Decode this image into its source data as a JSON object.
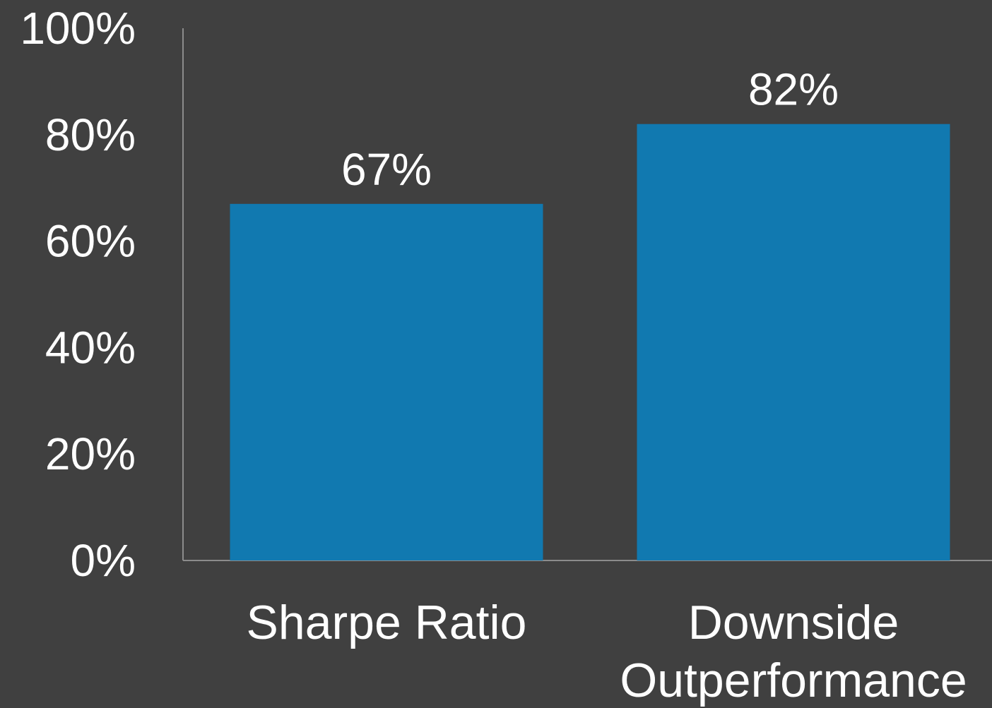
{
  "chart_data": {
    "type": "bar",
    "categories": [
      [
        "Sharpe Ratio"
      ],
      [
        "Downside",
        "Outperformance"
      ]
    ],
    "values": [
      0.67,
      0.82
    ],
    "data_labels": [
      "67%",
      "82%"
    ],
    "y_ticks": [
      {
        "value": 0,
        "label": "0%"
      },
      {
        "value": 0.2,
        "label": "20%"
      },
      {
        "value": 0.4,
        "label": "40%"
      },
      {
        "value": 0.6,
        "label": "60%"
      },
      {
        "value": 0.8,
        "label": "80%"
      },
      {
        "value": 1.0,
        "label": "100%"
      }
    ],
    "ylim": [
      0,
      1.0
    ],
    "title": "",
    "xlabel": "",
    "ylabel": "",
    "grid": false,
    "colors": {
      "background": "#404040",
      "bar": "#1179b0",
      "text": "#ffffff",
      "axis": "#8c8c8c"
    }
  }
}
